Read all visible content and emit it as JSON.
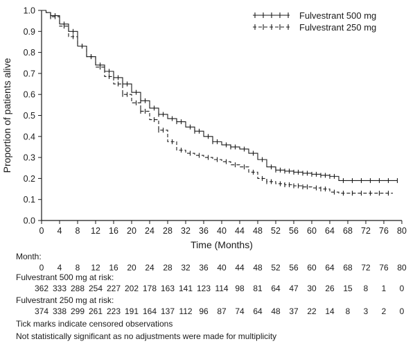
{
  "chart_data": {
    "type": "line",
    "xlabel": "Time (Months)",
    "ylabel": "Proportion of patients alive",
    "xlim": [
      0,
      80
    ],
    "ylim": [
      0.0,
      1.0
    ],
    "x_ticks": [
      "0",
      "4",
      "8",
      "12",
      "16",
      "20",
      "24",
      "28",
      "32",
      "36",
      "40",
      "44",
      "48",
      "52",
      "56",
      "60",
      "64",
      "68",
      "72",
      "76",
      "80"
    ],
    "y_ticks": [
      "0.0",
      "0.1",
      "0.2",
      "0.3",
      "0.4",
      "0.5",
      "0.6",
      "0.7",
      "0.8",
      "0.9",
      "1.0"
    ],
    "grid": false,
    "legend_position": "top-right",
    "series": [
      {
        "name": "Fulvestrant 500 mg",
        "style": "solid",
        "color": "#1a1a1a",
        "points": [
          [
            0,
            1.0
          ],
          [
            1,
            0.99
          ],
          [
            2,
            0.975
          ],
          [
            4,
            0.935
          ],
          [
            6,
            0.9
          ],
          [
            8,
            0.83
          ],
          [
            10,
            0.78
          ],
          [
            12,
            0.74
          ],
          [
            14,
            0.71
          ],
          [
            16,
            0.68
          ],
          [
            18,
            0.65
          ],
          [
            20,
            0.61
          ],
          [
            22,
            0.57
          ],
          [
            24,
            0.535
          ],
          [
            26,
            0.505
          ],
          [
            28,
            0.485
          ],
          [
            30,
            0.47
          ],
          [
            32,
            0.445
          ],
          [
            34,
            0.425
          ],
          [
            36,
            0.4
          ],
          [
            38,
            0.375
          ],
          [
            40,
            0.36
          ],
          [
            42,
            0.35
          ],
          [
            44,
            0.34
          ],
          [
            46,
            0.32
          ],
          [
            48,
            0.29
          ],
          [
            50,
            0.255
          ],
          [
            52,
            0.24
          ],
          [
            54,
            0.235
          ],
          [
            56,
            0.23
          ],
          [
            58,
            0.225
          ],
          [
            60,
            0.22
          ],
          [
            62,
            0.215
          ],
          [
            64,
            0.21
          ],
          [
            66,
            0.19
          ],
          [
            68,
            0.19
          ],
          [
            72,
            0.19
          ],
          [
            76,
            0.19
          ],
          [
            79,
            0.19
          ]
        ],
        "censored_x": [
          2,
          3,
          5,
          7,
          9,
          11,
          13,
          15,
          17,
          18,
          19,
          21,
          22,
          23,
          25,
          26,
          27,
          29,
          30,
          31,
          33,
          34,
          35,
          37,
          38,
          39,
          41,
          42,
          43,
          45,
          47,
          49,
          51,
          52,
          53,
          54,
          55,
          56,
          57,
          58,
          59,
          60,
          61,
          62,
          63,
          64,
          65,
          67,
          69,
          71,
          73,
          75,
          77,
          79
        ]
      },
      {
        "name": "Fulvestrant 250 mg",
        "style": "dashed",
        "color": "#1a1a1a",
        "points": [
          [
            0,
            1.0
          ],
          [
            1,
            0.99
          ],
          [
            2,
            0.97
          ],
          [
            4,
            0.925
          ],
          [
            6,
            0.875
          ],
          [
            8,
            0.83
          ],
          [
            10,
            0.78
          ],
          [
            12,
            0.73
          ],
          [
            14,
            0.685
          ],
          [
            16,
            0.65
          ],
          [
            18,
            0.6
          ],
          [
            20,
            0.56
          ],
          [
            22,
            0.52
          ],
          [
            24,
            0.48
          ],
          [
            26,
            0.43
          ],
          [
            28,
            0.375
          ],
          [
            30,
            0.335
          ],
          [
            32,
            0.32
          ],
          [
            34,
            0.31
          ],
          [
            36,
            0.3
          ],
          [
            38,
            0.29
          ],
          [
            40,
            0.28
          ],
          [
            42,
            0.265
          ],
          [
            44,
            0.255
          ],
          [
            46,
            0.23
          ],
          [
            48,
            0.2
          ],
          [
            50,
            0.185
          ],
          [
            52,
            0.175
          ],
          [
            54,
            0.17
          ],
          [
            56,
            0.165
          ],
          [
            58,
            0.16
          ],
          [
            60,
            0.155
          ],
          [
            62,
            0.15
          ],
          [
            64,
            0.135
          ],
          [
            66,
            0.13
          ],
          [
            68,
            0.13
          ],
          [
            72,
            0.13
          ],
          [
            76,
            0.13
          ],
          [
            78,
            0.13
          ]
        ],
        "censored_x": [
          2,
          3,
          5,
          7,
          9,
          11,
          13,
          15,
          17,
          18,
          19,
          21,
          22,
          23,
          25,
          26,
          27,
          29,
          31,
          33,
          35,
          37,
          39,
          41,
          43,
          45,
          47,
          49,
          50,
          51,
          53,
          54,
          55,
          56,
          57,
          58,
          59,
          61,
          62,
          63,
          65,
          67,
          69,
          71,
          73,
          75,
          77
        ]
      }
    ],
    "risk_table": {
      "month_label": "Month:",
      "months": [
        "0",
        "4",
        "8",
        "12",
        "16",
        "20",
        "24",
        "28",
        "32",
        "36",
        "40",
        "44",
        "48",
        "52",
        "56",
        "60",
        "64",
        "68",
        "72",
        "76",
        "80"
      ],
      "rows": [
        {
          "label": "Fulvestrant 500 mg at risk:",
          "values": [
            "362",
            "333",
            "288",
            "254",
            "227",
            "202",
            "178",
            "163",
            "141",
            "123",
            "114",
            "98",
            "81",
            "64",
            "47",
            "30",
            "26",
            "15",
            "8",
            "1",
            "0"
          ]
        },
        {
          "label": "Fulvestrant 250 mg at risk:",
          "values": [
            "374",
            "338",
            "299",
            "261",
            "223",
            "191",
            "164",
            "137",
            "112",
            "96",
            "87",
            "74",
            "64",
            "48",
            "37",
            "22",
            "14",
            "8",
            "3",
            "2",
            "0"
          ]
        }
      ]
    },
    "footnotes": [
      "Tick marks indicate censored observations",
      "Not statistically significant as no adjustments were made for multiplicity"
    ]
  }
}
